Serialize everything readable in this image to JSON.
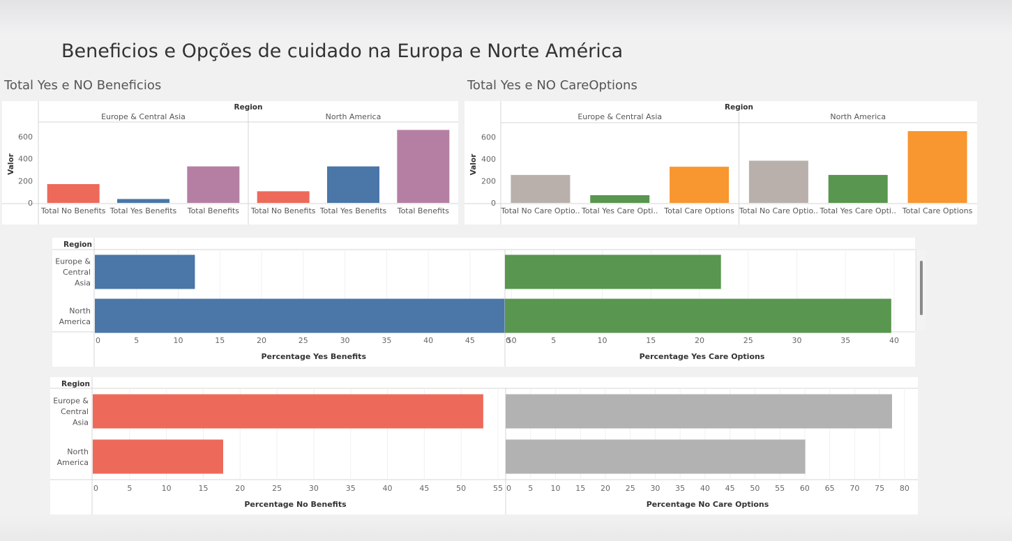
{
  "dashboard": {
    "title": "Beneficios e Opções de cuidado na Europa e Norte América"
  },
  "chart_data": [
    {
      "id": "benefits-totals",
      "type": "bar",
      "title": "Total Yes e NO Beneficios",
      "column_header": "Region",
      "ylabel": "Valor",
      "ylim": [
        0,
        700
      ],
      "yticks": [
        0,
        200,
        400,
        600
      ],
      "groups": [
        {
          "name": "Europe & Central Asia",
          "categories": [
            "Total No Benefits",
            "Total Yes Benefits",
            "Total Benefits"
          ],
          "values": [
            170,
            35,
            330
          ]
        },
        {
          "name": "North America",
          "categories": [
            "Total No Benefits",
            "Total Yes Benefits",
            "Total Benefits"
          ],
          "values": [
            105,
            330,
            660
          ]
        }
      ],
      "colors": [
        "#ed6a5a",
        "#4a76a8",
        "#b57fa3"
      ]
    },
    {
      "id": "care-options-totals",
      "type": "bar",
      "title": "Total Yes e NO CareOptions",
      "column_header": "Region",
      "ylabel": "Valor",
      "ylim": [
        0,
        700
      ],
      "yticks": [
        0,
        200,
        400,
        600
      ],
      "groups": [
        {
          "name": "Europe & Central Asia",
          "categories": [
            "Total No Care Optio..",
            "Total Yes Care Opti..",
            "Total Care Options"
          ],
          "values": [
            255,
            70,
            330
          ]
        },
        {
          "name": "North America",
          "categories": [
            "Total No Care Optio..",
            "Total Yes Care Opti..",
            "Total Care Options"
          ],
          "values": [
            385,
            255,
            655
          ]
        }
      ],
      "colors": [
        "#bab0ab",
        "#59964f",
        "#f8962f"
      ]
    },
    {
      "id": "percentage-yes",
      "type": "bar",
      "orientation": "horizontal",
      "row_header": "Region",
      "categories": [
        "Europe & Central Asia",
        "North America"
      ],
      "category_lines": [
        [
          "Europe &",
          "Central",
          "Asia"
        ],
        [
          "North",
          "America"
        ]
      ],
      "panes": [
        {
          "xlabel": "Percentage Yes Benefits",
          "xlim": [
            0,
            52.5
          ],
          "xticks": [
            0,
            5,
            10,
            15,
            20,
            25,
            30,
            35,
            40,
            45,
            50
          ],
          "values": [
            12.0,
            51.8
          ],
          "color": "#4a76a8"
        },
        {
          "xlabel": "Percentage Yes Care Options",
          "xlim": [
            0,
            40.5
          ],
          "xticks": [
            0,
            5,
            10,
            15,
            20,
            25,
            30,
            35,
            40
          ],
          "values": [
            22.2,
            39.7
          ],
          "color": "#59964f"
        }
      ]
    },
    {
      "id": "percentage-no",
      "type": "bar",
      "orientation": "horizontal",
      "row_header": "Region",
      "categories": [
        "Europe & Central Asia",
        "North America"
      ],
      "category_lines": [
        [
          "Europe &",
          "Central",
          "Asia"
        ],
        [
          "North",
          "America"
        ]
      ],
      "panes": [
        {
          "xlabel": "Percentage No Benefits",
          "xlim": [
            0,
            55
          ],
          "xticks": [
            0,
            5,
            10,
            15,
            20,
            25,
            30,
            35,
            40,
            45,
            50,
            55
          ],
          "values": [
            53.0,
            17.7
          ],
          "color": "#ed6a5a"
        },
        {
          "xlabel": "Percentage No Care Options",
          "xlim": [
            0,
            81
          ],
          "xticks": [
            0,
            5,
            10,
            15,
            20,
            25,
            30,
            35,
            40,
            45,
            50,
            55,
            60,
            65,
            70,
            75,
            80
          ],
          "values": [
            77.5,
            60.1
          ],
          "color": "#b2b2b2"
        }
      ]
    }
  ]
}
